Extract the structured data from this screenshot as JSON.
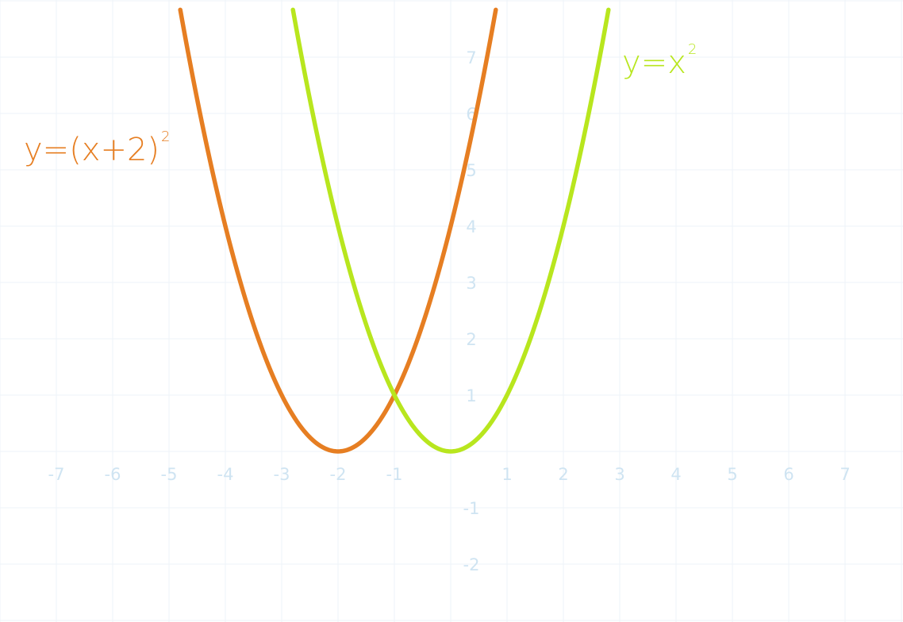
{
  "chart_data": {
    "type": "line",
    "xlim": [
      -7,
      7
    ],
    "ylim": [
      -2,
      7
    ],
    "x_ticks": [
      "-7",
      "-6",
      "-5",
      "-4",
      "-3",
      "-2",
      "-1",
      "1",
      "2",
      "3",
      "4",
      "5",
      "6",
      "7"
    ],
    "y_ticks": [
      "7",
      "6",
      "5",
      "4",
      "3",
      "2",
      "1",
      "-1",
      "-2"
    ],
    "grid": true,
    "series": [
      {
        "name": "y=(x+2)",
        "exponent": "2",
        "color": "#e67e22",
        "x": [
          -4.8,
          -4.5,
          -4,
          -3.5,
          -3,
          -2.5,
          -2,
          -1.5,
          -1,
          -0.5,
          0,
          0.5,
          0.8
        ],
        "y": [
          7.84,
          6.25,
          4,
          2.25,
          1,
          0.25,
          0,
          0.25,
          1,
          2.25,
          4,
          6.25,
          7.84
        ]
      },
      {
        "name": "y=x",
        "exponent": "2",
        "color": "#b8e61e",
        "x": [
          -2.8,
          -2.5,
          -2,
          -1.5,
          -1,
          -0.5,
          0,
          0.5,
          1,
          1.5,
          2,
          2.5,
          2.8
        ],
        "y": [
          7.84,
          6.25,
          4,
          2.25,
          1,
          0.25,
          0,
          0.25,
          1,
          2.25,
          4,
          6.25,
          7.84
        ]
      }
    ]
  }
}
